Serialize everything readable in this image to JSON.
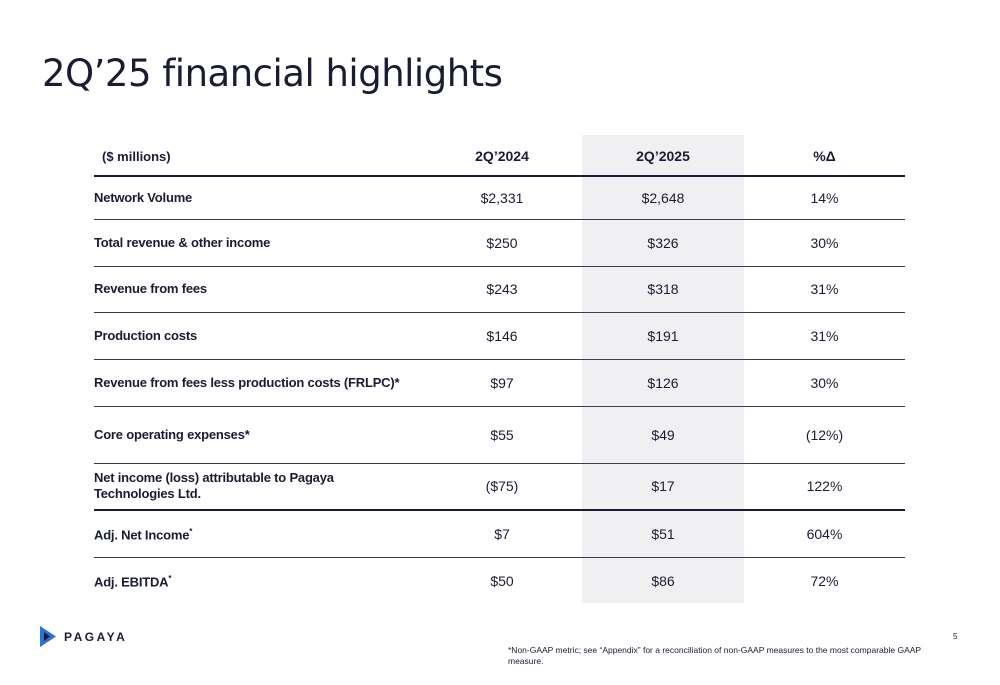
{
  "slide": {
    "title": "2Q’25 financial highlights",
    "page_number": "5",
    "footnote": "*Non-GAAP metric; see “Appendix” for a reconciliation of non-GAAP measures to the most comparable GAAP measure.",
    "logo_text": "PAGAYA"
  },
  "table": {
    "headers": [
      "($ millions)",
      "2Q’2024",
      "2Q’2025",
      "%Δ"
    ],
    "rows": [
      {
        "label": "Network Volume",
        "q2024": "$2,331",
        "q2025": "$2,648",
        "change": "14%"
      },
      {
        "label": "Total revenue & other income",
        "q2024": "$250",
        "q2025": "$326",
        "change": "30%"
      },
      {
        "label": "Revenue from fees",
        "q2024": "$243",
        "q2025": "$318",
        "change": "31%"
      },
      {
        "label": "Production costs",
        "q2024": "$146",
        "q2025": "$191",
        "change": "31%"
      },
      {
        "label": "Revenue from fees less production costs (FRLPC)*",
        "q2024": "$97",
        "q2025": "$126",
        "change": "30%"
      },
      {
        "label": "Core operating expenses*",
        "q2024": "$55",
        "q2025": "$49",
        "change": "(12%)"
      },
      {
        "label": "Net income (loss) attributable to Pagaya Technologies Ltd.",
        "q2024": "($75)",
        "q2025": "$17",
        "change": "122%"
      },
      {
        "label": "Adj. Net Income",
        "label_sup": "*",
        "q2024": "$7",
        "q2025": "$51",
        "change": "604%"
      },
      {
        "label": "Adj. EBITDA",
        "label_sup": "*",
        "q2024": "$50",
        "q2025": "$86",
        "change": "72%"
      }
    ]
  },
  "colors": {
    "text": "#1a1c33",
    "highlight_column": "#f0f0f2",
    "logo_blue": "#2f6fd8",
    "logo_navy": "#1a1c33"
  },
  "icons": {
    "logo": "pagaya-logo-icon"
  }
}
